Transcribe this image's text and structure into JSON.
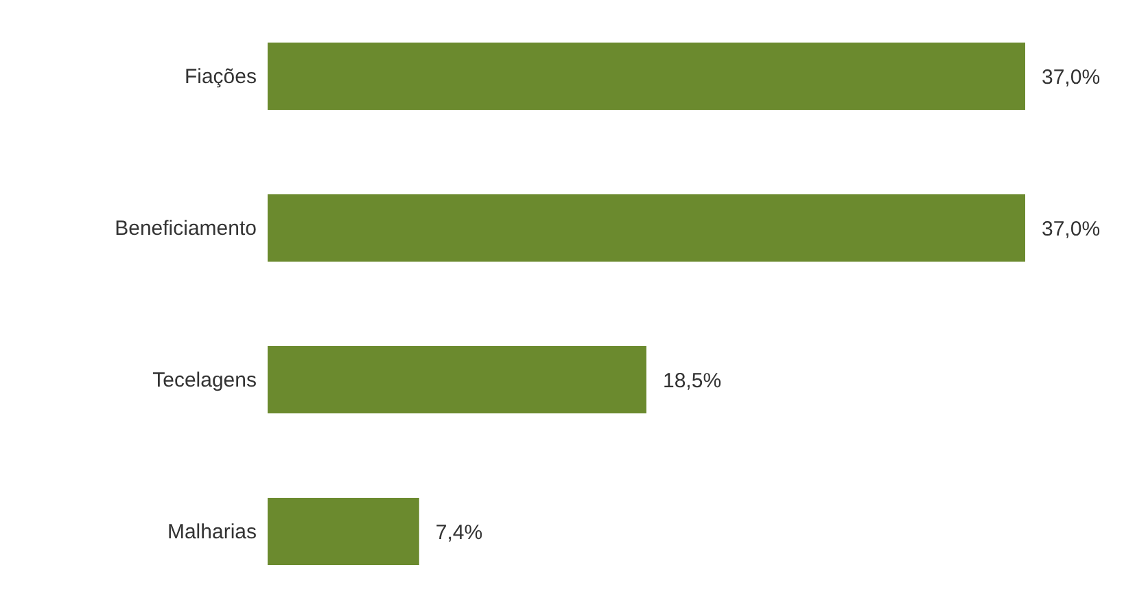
{
  "chart_data": {
    "type": "bar",
    "orientation": "horizontal",
    "categories": [
      "Fiações",
      "Beneficiamento",
      "Tecelagens",
      "Malharias"
    ],
    "values": [
      37.0,
      37.0,
      18.5,
      7.4
    ],
    "value_labels": [
      "37,0%",
      "37,0%",
      "18,5%",
      "7,4%"
    ],
    "color": "#6b8a2e",
    "grid": false,
    "legend": false
  }
}
